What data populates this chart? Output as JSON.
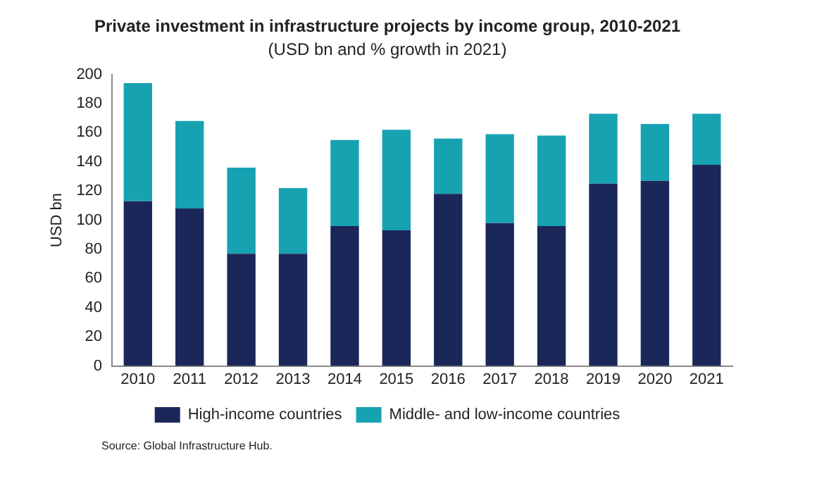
{
  "chart_data": {
    "type": "bar",
    "title": "Private investment in infrastructure projects by income group, 2010-2021",
    "subtitle": "(USD bn and % growth in 2021)",
    "ylabel": "USD bn",
    "categories": [
      "2010",
      "2011",
      "2012",
      "2013",
      "2014",
      "2015",
      "2016",
      "2017",
      "2018",
      "2019",
      "2020",
      "2021"
    ],
    "series": [
      {
        "name": "High-income countries",
        "color": "#1b2759",
        "values": [
          113,
          108,
          77,
          77,
          96,
          93,
          118,
          98,
          96,
          125,
          127,
          138
        ]
      },
      {
        "name": "Middle- and low-income countries",
        "color": "#17a2b2",
        "values": [
          81,
          60,
          59,
          45,
          59,
          69,
          38,
          61,
          62,
          48,
          39,
          35
        ]
      }
    ],
    "stacked": true,
    "ylim": [
      0,
      200
    ],
    "yticks": [
      0,
      20,
      40,
      60,
      80,
      100,
      120,
      140,
      160,
      180,
      200
    ],
    "grid": false,
    "legend": "bottom",
    "annotations": [
      "Source: Global Infrastructure Hub."
    ]
  }
}
